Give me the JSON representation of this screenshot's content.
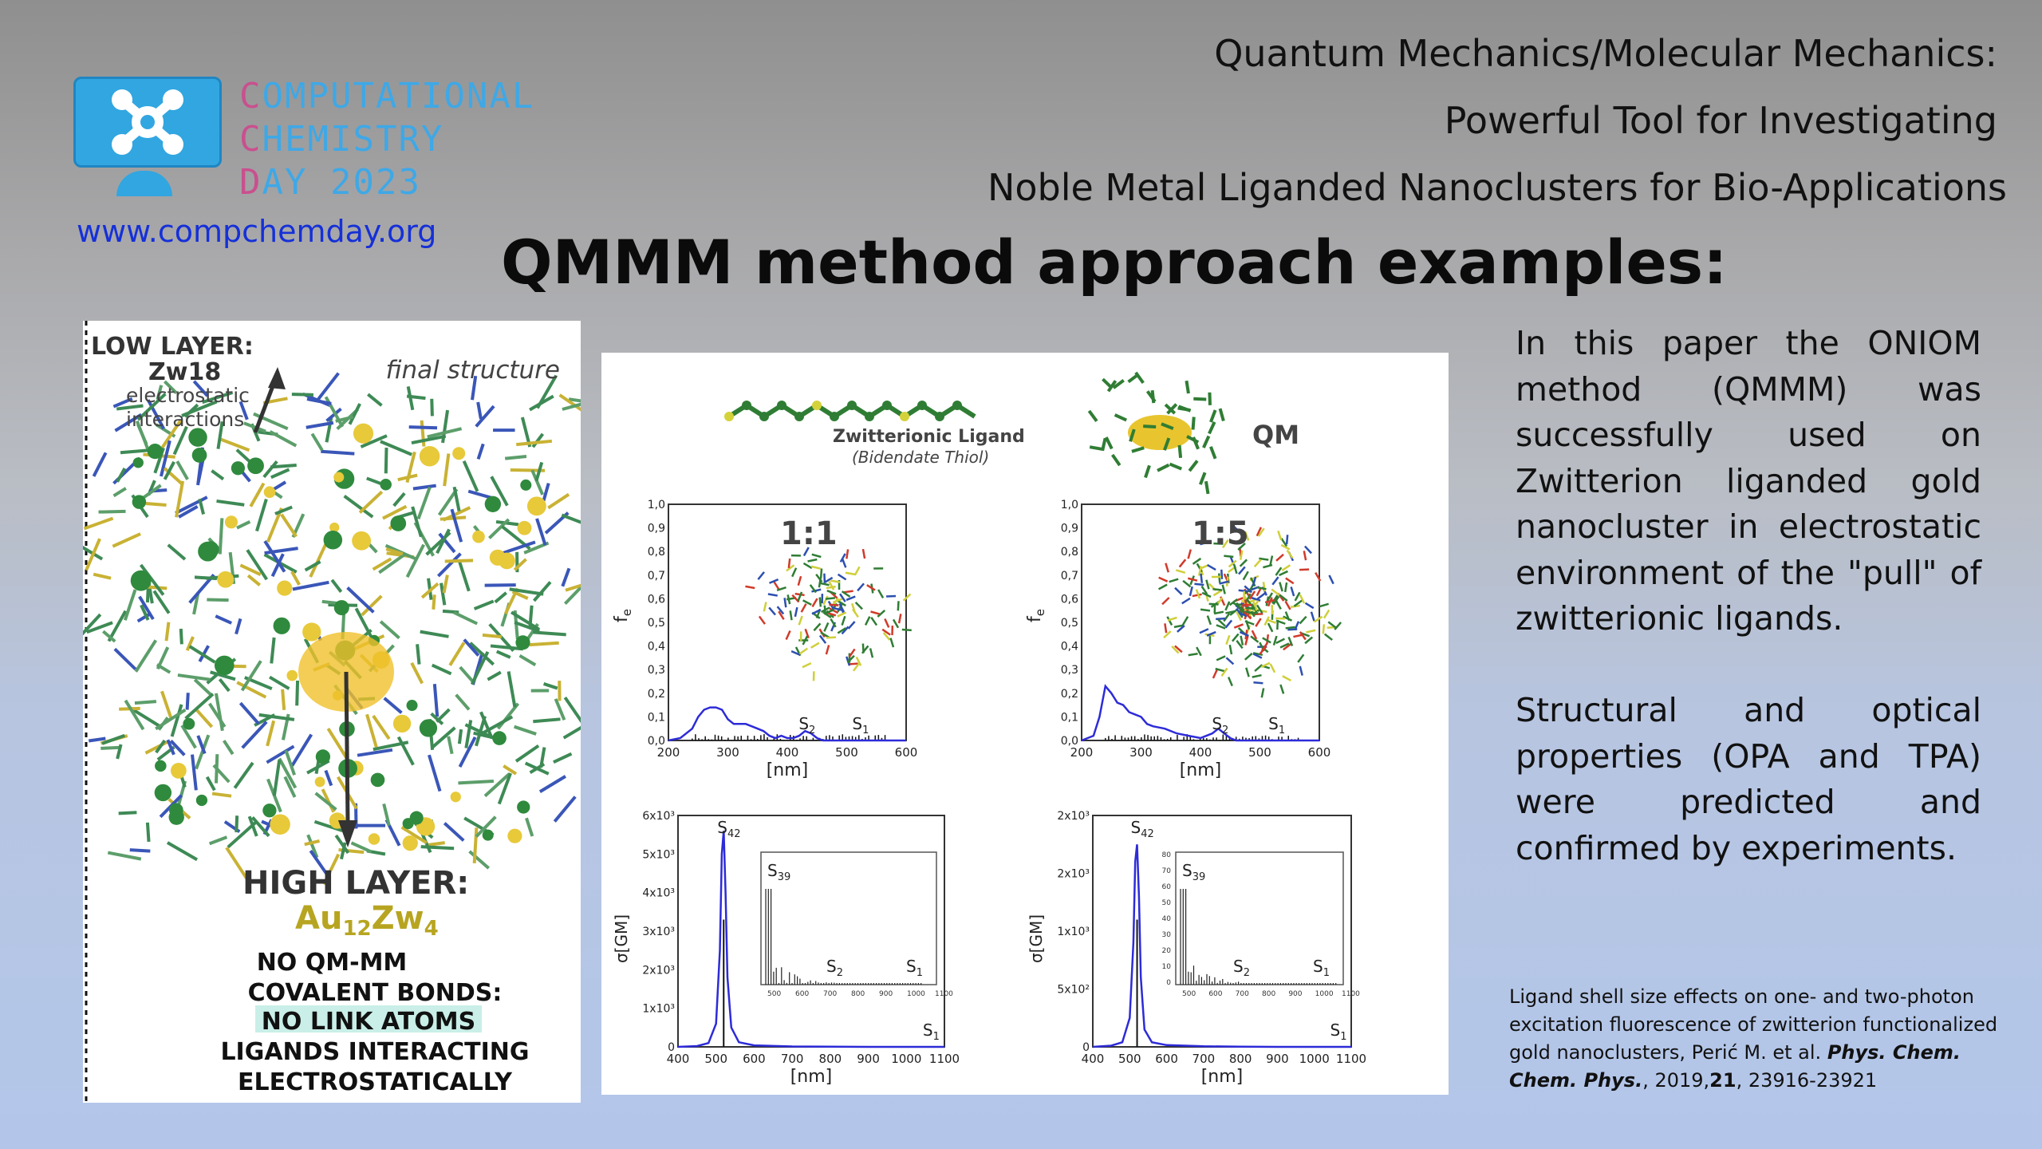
{
  "logo": {
    "lines": [
      {
        "initial": "C",
        "rest": "OMPUTATIONAL"
      },
      {
        "initial": "C",
        "rest": "HEMISTRY"
      },
      {
        "initial": "D",
        "rest": "AY 2023"
      }
    ],
    "website": "www.compchemday.org",
    "colors": {
      "blue": "#32a6e0",
      "pink": "#c9508e"
    }
  },
  "header": {
    "line1": "Quantum Mechanics/Molecular Mechanics:",
    "line2": "Powerful Tool for Investigating",
    "line3": "Noble Metal Liganded Nanoclusters for Bio-Applications"
  },
  "slide_title": "QMMM method approach examples:",
  "left_figure": {
    "low_layer": "LOW LAYER:",
    "low_layer_sub": "Zw18",
    "low_layer_desc1": "electrostatic",
    "low_layer_desc2": "interactions",
    "final_structure": "final structure",
    "high_layer": "HIGH LAYER:",
    "high_layer_formula": "Au",
    "high_sub1": "12",
    "high_formula2": "Zw",
    "high_sub2": "4",
    "note1": "NO QM-MM",
    "note2": "COVALENT BONDS:",
    "note3": "NO LINK ATOMS",
    "note4": "LIGANDS INTERACTING",
    "note5": "ELECTROSTATICALLY"
  },
  "right_figure": {
    "ligand_label": "Zwitterionic Ligand",
    "ligand_sub": "(Bidendate Thiol)",
    "qm_label": "QM",
    "nm_label": "[nm]",
    "fe_label": "f",
    "fe_sub": "e",
    "sigma_label": "σ[GM]"
  },
  "chart_data": [
    {
      "type": "line",
      "panel": "1:1",
      "ylabel": "fe",
      "xlabel": "[nm]",
      "xlim": [
        200,
        600
      ],
      "ylim": [
        0.0,
        1.0
      ],
      "x_ticks": [
        "200",
        "300",
        "400",
        "500",
        "600"
      ],
      "y_ticks": [
        "0,0",
        "0,1",
        "0,2",
        "0,3",
        "0,4",
        "0,5",
        "0,6",
        "0,7",
        "0,8",
        "0,9",
        "1,0"
      ],
      "x": [
        200,
        220,
        240,
        250,
        260,
        270,
        280,
        290,
        300,
        310,
        320,
        330,
        340,
        350,
        360,
        370,
        380,
        390,
        400,
        410,
        420,
        430,
        440,
        450,
        460,
        480,
        500,
        520,
        540,
        560,
        580,
        600
      ],
      "values": [
        0.0,
        0.01,
        0.05,
        0.1,
        0.13,
        0.14,
        0.14,
        0.13,
        0.09,
        0.07,
        0.07,
        0.07,
        0.06,
        0.05,
        0.04,
        0.02,
        0.01,
        0.02,
        0.01,
        0.01,
        0.02,
        0.04,
        0.03,
        0.01,
        0.0,
        0.0,
        0.0,
        0.0,
        0.0,
        0.0,
        0.0,
        0.0
      ],
      "annotations": [
        {
          "label": "S",
          "sub": "2",
          "x": 430
        },
        {
          "label": "S",
          "sub": "1",
          "x": 520
        }
      ]
    },
    {
      "type": "line",
      "panel": "1:5",
      "ylabel": "fe",
      "xlabel": "[nm]",
      "xlim": [
        200,
        600
      ],
      "ylim": [
        0.0,
        1.0
      ],
      "x_ticks": [
        "200",
        "300",
        "400",
        "500",
        "600"
      ],
      "y_ticks": [
        "0,0",
        "0,1",
        "0,2",
        "0,3",
        "0,4",
        "0,5",
        "0,6",
        "0,7",
        "0,8",
        "0,9",
        "1,0"
      ],
      "x": [
        200,
        220,
        230,
        240,
        250,
        260,
        270,
        280,
        290,
        300,
        310,
        320,
        340,
        360,
        380,
        400,
        410,
        420,
        430,
        440,
        450,
        460,
        480,
        500,
        520,
        540,
        560,
        580,
        600
      ],
      "values": [
        0.0,
        0.02,
        0.1,
        0.23,
        0.2,
        0.16,
        0.15,
        0.12,
        0.11,
        0.1,
        0.07,
        0.06,
        0.05,
        0.03,
        0.02,
        0.01,
        0.02,
        0.03,
        0.05,
        0.03,
        0.01,
        0.0,
        0.0,
        0.0,
        0.0,
        0.0,
        0.0,
        0.0,
        0.0
      ],
      "annotations": [
        {
          "label": "S",
          "sub": "2",
          "x": 430
        },
        {
          "label": "S",
          "sub": "1",
          "x": 525
        }
      ]
    },
    {
      "type": "line",
      "panel": "TPA 1:1",
      "ylabel": "σ[GM]",
      "xlabel": "[nm]",
      "xlim": [
        400,
        1100
      ],
      "ylim": [
        0,
        6000
      ],
      "x_ticks": [
        "400",
        "500",
        "600",
        "700",
        "800",
        "900",
        "1000",
        "1100"
      ],
      "y_ticks": [
        "0",
        "1x10³",
        "2x10³",
        "3x10³",
        "4x10³",
        "5x10³",
        "6x10³"
      ],
      "x": [
        400,
        450,
        480,
        500,
        510,
        515,
        520,
        525,
        530,
        540,
        560,
        600,
        700,
        800,
        900,
        1000,
        1100
      ],
      "values": [
        0,
        20,
        100,
        600,
        2500,
        5000,
        5600,
        4000,
        1800,
        500,
        120,
        40,
        10,
        5,
        0,
        0,
        0
      ],
      "annotations": [
        {
          "label": "S",
          "sub": "42",
          "x": 520
        },
        {
          "label": "S",
          "sub": "1",
          "x": 1060
        }
      ],
      "inset_annotations": [
        {
          "label": "S",
          "sub": "39"
        },
        {
          "label": "S",
          "sub": "2"
        },
        {
          "label": "S",
          "sub": "1"
        }
      ],
      "inset_x_ticks": [
        "500",
        "600",
        "700",
        "800",
        "900",
        "1000",
        "1100"
      ]
    },
    {
      "type": "line",
      "panel": "TPA 1:5",
      "ylabel": "σ[GM]",
      "xlabel": "[nm]",
      "xlim": [
        400,
        1100
      ],
      "ylim": [
        0,
        2000
      ],
      "x_ticks": [
        "400",
        "500",
        "600",
        "700",
        "800",
        "900",
        "1000",
        "1100"
      ],
      "y_ticks": [
        "0",
        "5x10²",
        "1x10³",
        "2x10³",
        "2x10³"
      ],
      "x": [
        400,
        450,
        480,
        500,
        510,
        515,
        520,
        525,
        530,
        540,
        560,
        600,
        700,
        800,
        900,
        1000,
        1100
      ],
      "values": [
        0,
        10,
        40,
        250,
        900,
        1600,
        1750,
        1300,
        600,
        150,
        40,
        15,
        5,
        2,
        0,
        0,
        0
      ],
      "annotations": [
        {
          "label": "S",
          "sub": "42",
          "x": 520
        },
        {
          "label": "S",
          "sub": "1",
          "x": 1060
        }
      ],
      "inset_annotations": [
        {
          "label": "S",
          "sub": "39"
        },
        {
          "label": "S",
          "sub": "2"
        },
        {
          "label": "S",
          "sub": "1"
        }
      ],
      "inset_x_ticks": [
        "500",
        "600",
        "700",
        "800",
        "900",
        "1000",
        "1100"
      ],
      "inset_y_ticks": [
        "0",
        "10",
        "20",
        "30",
        "40",
        "50",
        "60",
        "70",
        "80"
      ]
    }
  ],
  "panel_labels": [
    "1:1",
    "1:5"
  ],
  "paragraph1": "In this paper the ONIOM method (QMMM) was successfully used on Zwitterion liganded gold nanocluster in electrostatic environment of the \"pull\" of zwitterionic ligands.",
  "paragraph2": "Structural and optical properties (OPA and TPA) were predicted and confirmed by experiments.",
  "citation": {
    "text": "Ligand shell size effects on one- and two-photon excitation fluorescence of zwitterion functionalized gold nanoclusters, Perić M. et al.",
    "journal": "Phys. Chem. Chem. Phys.",
    "year": ", 2019,",
    "volume": "21",
    "pages": ", 23916-23921"
  }
}
